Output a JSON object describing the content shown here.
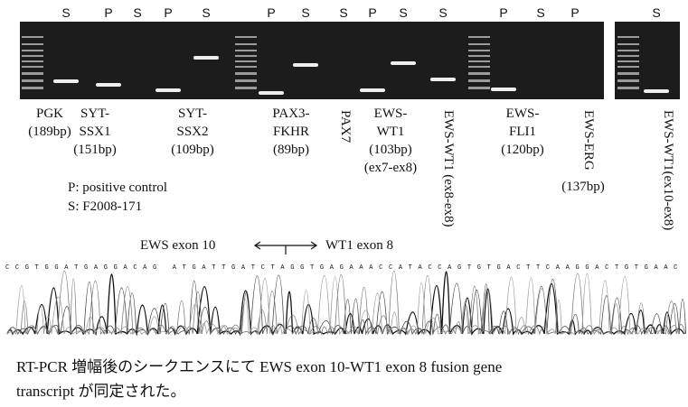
{
  "gel": {
    "lane_labels": [
      "S",
      "P",
      "S",
      "P",
      "S",
      "P",
      "S",
      "S",
      "P",
      "S",
      "S",
      "P",
      "S",
      "P",
      "S"
    ]
  },
  "products": [
    {
      "lines": [
        "PGK",
        "(189bp)"
      ]
    },
    {
      "lines": [
        "SYT-",
        "SSX1",
        "(151bp)"
      ]
    },
    {
      "lines": [
        "SYT-",
        "SSX2",
        "(109bp)"
      ]
    },
    {
      "lines": [
        "PAX3-",
        "FKHR",
        "(89bp)"
      ]
    },
    {
      "lines": [
        "PAX7"
      ]
    },
    {
      "lines": [
        "EWS-",
        "WT1",
        "(103bp)",
        "(ex7-ex8)"
      ]
    },
    {
      "lines": [
        "EWS-WT1 (ex8-ex8)"
      ]
    },
    {
      "lines": [
        "EWS-",
        "FLI1",
        "(120bp)"
      ]
    },
    {
      "lines": [
        "EWS-ERG",
        "(137bp)"
      ]
    },
    {
      "lines": [
        "EWS-WT1(ex10-ex8)"
      ]
    }
  ],
  "legend": [
    "P: positive control",
    "S: F2008-171"
  ],
  "sequence": {
    "left_label": "EWS exon 10",
    "right_label": "WT1 exon 8",
    "bases": "CCGTGGATGAGGACAG ATGATTGATCTAGGTGAGAAACCATACCAGTGTGACTTCAAGGACTGTGAAC"
  },
  "caption": [
    "RT-PCR 増幅後のシークエンスにて EWS exon 10-WT1 exon 8 fusion gene",
    "transcript が同定された。"
  ]
}
